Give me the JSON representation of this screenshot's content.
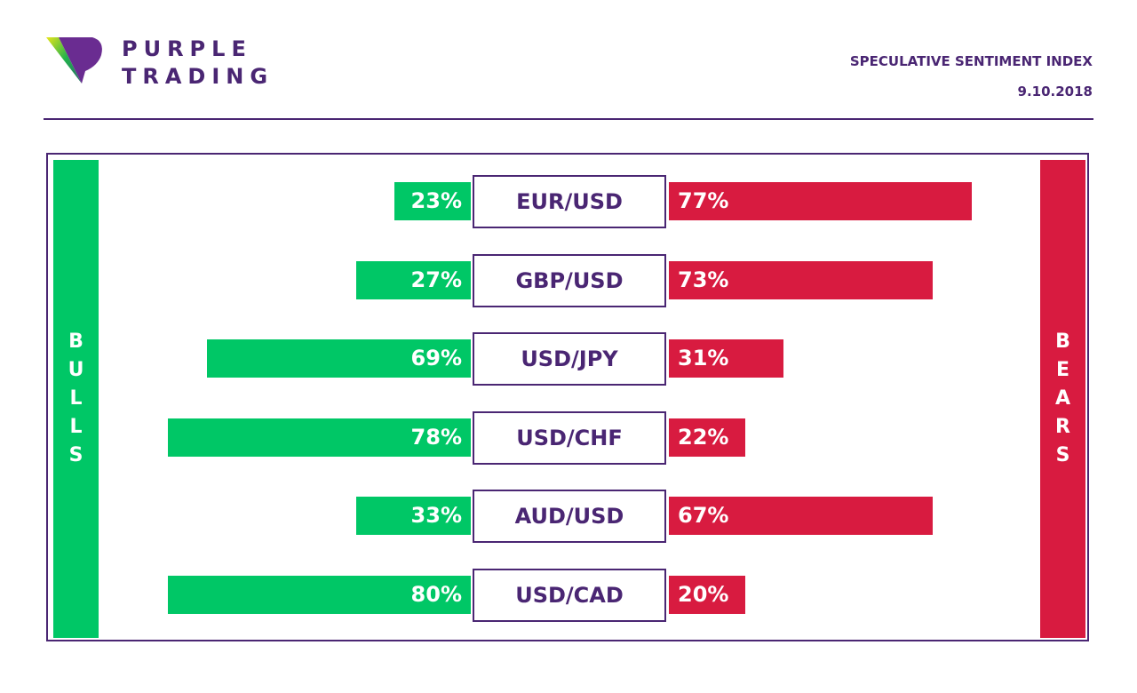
{
  "header": {
    "brand_line1": "PURPLE",
    "brand_line2": "TRADING",
    "title": "SPECULATIVE SENTIMENT INDEX",
    "date": "9.10.2018"
  },
  "labels": {
    "bulls": "BULLS",
    "bears": "BEARS"
  },
  "colors": {
    "bulls": "#00c766",
    "bears": "#d81b40",
    "brand": "#4a2673"
  },
  "chart_data": {
    "type": "bar",
    "title": "SPECULATIVE SENTIMENT INDEX",
    "subtitle": "9.10.2018",
    "orientation": "horizontal-diverging",
    "categories": [
      "EUR/USD",
      "GBP/USD",
      "USD/JPY",
      "USD/CHF",
      "AUD/USD",
      "USD/CAD"
    ],
    "series": [
      {
        "name": "BULLS",
        "values": [
          23,
          27,
          69,
          78,
          33,
          80
        ],
        "labels": [
          "23%",
          "27%",
          "69%",
          "78%",
          "33%",
          "80%"
        ]
      },
      {
        "name": "BEARS",
        "values": [
          77,
          73,
          31,
          22,
          67,
          20
        ],
        "labels": [
          "77%",
          "73%",
          "31%",
          "22%",
          "67%",
          "20%"
        ]
      }
    ],
    "unit": "%",
    "xlabel": "",
    "ylabel": "",
    "legend": "sides (left BULLS, right BEARS)"
  }
}
